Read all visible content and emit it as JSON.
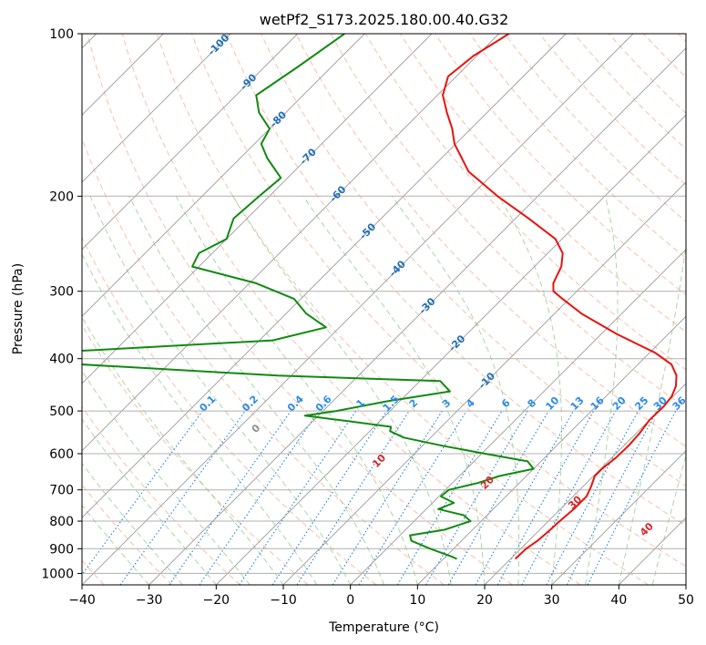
{
  "chart_data": {
    "type": "line",
    "title": "wetPf2_S173.2025.180.00.40.G32",
    "xlabel": "Temperature (°C)",
    "ylabel": "Pressure (hPa)",
    "xlim": [
      -40,
      50
    ],
    "ylim": [
      1050,
      100
    ],
    "y_scale": "log",
    "grid": true,
    "x_ticks": [
      "−40",
      "−30",
      "−20",
      "−10",
      "0",
      "10",
      "20",
      "30",
      "40",
      "50"
    ],
    "x_tick_values": [
      -40,
      -30,
      -20,
      -10,
      0,
      10,
      20,
      30,
      40,
      50
    ],
    "y_ticks": [
      "100",
      "200",
      "300",
      "400",
      "500",
      "600",
      "700",
      "800",
      "900",
      "1000"
    ],
    "y_tick_values": [
      100,
      200,
      300,
      400,
      500,
      600,
      700,
      800,
      900,
      1000
    ],
    "skew_degrees": 45,
    "colors": {
      "temperature": "#e8130b",
      "dewpoint": "#118a11",
      "dry_adiabat": "#f4a58a",
      "moist_adiabat": "#8cc98c",
      "mixing_ratio": "#1e7fd6",
      "isotherm": "#9a9a9a",
      "isotherm_label": "#1f6fb4",
      "mixing_label": "#2b8ae6",
      "adiabat_label": "#d62728",
      "zero_label": "#8c8c8c"
    },
    "series": [
      {
        "key": "temperature",
        "p": [
          940,
          900,
          870,
          840,
          800,
          760,
          720,
          690,
          660,
          640,
          610,
          580,
          550,
          520,
          490,
          470,
          450,
          430,
          410,
          390,
          360,
          330,
          310,
          300,
          290,
          270,
          255,
          240,
          220,
          200,
          180,
          170,
          160,
          150,
          140,
          130,
          120,
          110,
          100
        ],
        "t": [
          20.7,
          20.8,
          21.3,
          21.5,
          21.7,
          22.0,
          22.0,
          21.2,
          20.2,
          20.2,
          20.6,
          20.7,
          20.5,
          20.0,
          20.1,
          19.8,
          18.9,
          17.4,
          15.0,
          10.8,
          2.3,
          -6.0,
          -11.0,
          -13.5,
          -14.7,
          -16.0,
          -17.8,
          -21.0,
          -28.0,
          -36.0,
          -44.0,
          -47.0,
          -50.2,
          -52.8,
          -56.0,
          -59.2,
          -61.2,
          -60.5,
          -58.5
        ]
      },
      {
        "key": "dewpoint",
        "p": [
          940,
          930,
          900,
          870,
          850,
          830,
          800,
          780,
          760,
          740,
          720,
          700,
          680,
          660,
          640,
          620,
          600,
          580,
          560,
          545,
          535,
          520,
          510,
          500,
          480,
          460,
          440,
          430,
          410,
          400,
          390,
          370,
          350,
          330,
          310,
          290,
          270,
          255,
          240,
          220,
          200,
          185,
          170,
          160,
          150,
          140,
          130,
          115,
          100
        ],
        "t": [
          12.0,
          10.8,
          6.5,
          2.5,
          1.5,
          5.8,
          8.4,
          6.5,
          1.8,
          3.2,
          0.3,
          0.5,
          3.8,
          6.0,
          10.0,
          8.0,
          0.5,
          -7.0,
          -14.0,
          -17.0,
          -17.5,
          -26.0,
          -32.0,
          -28.0,
          -22.0,
          -14.0,
          -17.0,
          -42.0,
          -73.0,
          -79.0,
          -80.0,
          -48.0,
          -42.0,
          -47.0,
          -51.0,
          -59.0,
          -71.0,
          -72.0,
          -70.0,
          -72.0,
          -71.5,
          -71.0,
          -76.0,
          -79.0,
          -80.0,
          -84.0,
          -87.0,
          -85.0,
          -83.0
        ]
      }
    ],
    "isotherm_labels": [
      "-100",
      "-90",
      "-80",
      "-70",
      "-60",
      "-50",
      "-40",
      "-30",
      "-20",
      "-10"
    ],
    "isotherm_label_values": [
      -100,
      -90,
      -80,
      -70,
      -60,
      -50,
      -40,
      -30,
      -20,
      -10
    ],
    "mixing_ratio_labels": [
      "0.1",
      "0.2",
      "0.4",
      "0.6",
      "1",
      "1.5",
      "2",
      "3",
      "4",
      "6",
      "8",
      "10",
      "13",
      "16",
      "20",
      "25",
      "30",
      "36"
    ],
    "mixing_ratio_values": [
      0.1,
      0.2,
      0.4,
      0.6,
      1,
      1.5,
      2,
      3,
      4,
      6,
      8,
      10,
      13,
      16,
      20,
      25,
      30,
      36
    ],
    "moist_adiabat_labels": [
      "0",
      "10",
      "20",
      "30",
      "40"
    ],
    "moist_adiabat_values": [
      0,
      10,
      20,
      30,
      40
    ]
  }
}
